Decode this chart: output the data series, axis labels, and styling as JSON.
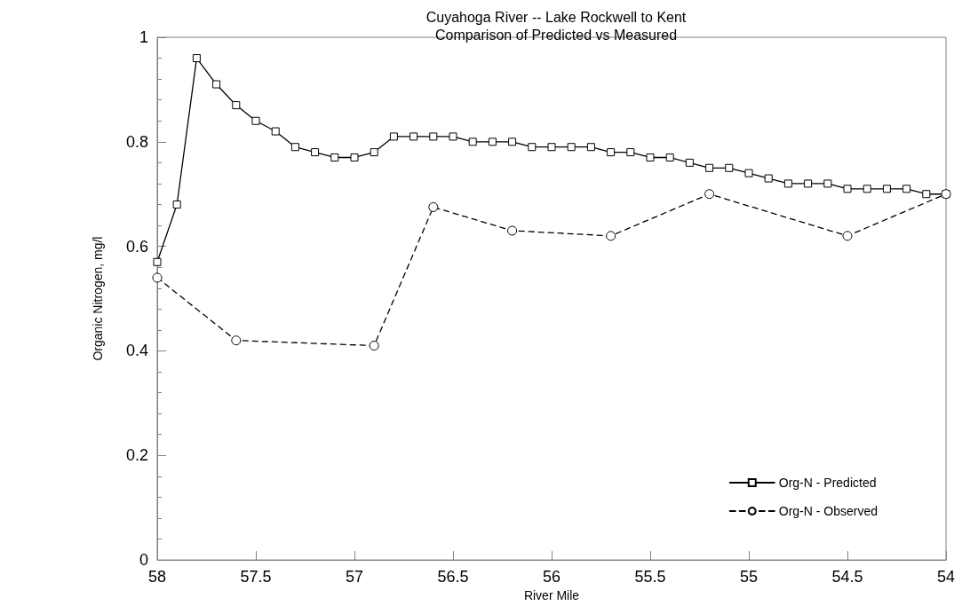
{
  "chart_data": {
    "type": "line",
    "title": "Cuyahoga River -- Lake Rockwell to Kent",
    "subtitle": "Comparison of Predicted vs Measured",
    "xlabel": "River Mile",
    "ylabel": "Organic Nitrogen, mg/l",
    "xlim": [
      58,
      54
    ],
    "xticks": [
      58,
      57.5,
      57,
      56.5,
      56,
      55.5,
      55,
      54.5,
      54
    ],
    "ylim": [
      0,
      1
    ],
    "yticks": [
      0,
      0.2,
      0.4,
      0.6,
      0.8,
      1
    ],
    "grid": false,
    "legend": "bottom right",
    "series": [
      {
        "name": "Org-N - Predicted",
        "color": "#000000",
        "marker": "square",
        "line_style": "solid",
        "x": [
          58,
          57.9,
          57.8,
          57.7,
          57.6,
          57.5,
          57.4,
          57.3,
          57.2,
          57.1,
          57.0,
          56.9,
          56.8,
          56.7,
          56.6,
          56.5,
          56.4,
          56.3,
          56.2,
          56.1,
          56.0,
          55.9,
          55.8,
          55.7,
          55.6,
          55.5,
          55.4,
          55.3,
          55.2,
          55.1,
          55.0,
          54.9,
          54.8,
          54.7,
          54.6,
          54.5,
          54.4,
          54.3,
          54.2,
          54.1,
          54.0
        ],
        "values": [
          0.57,
          0.68,
          0.96,
          0.91,
          0.87,
          0.84,
          0.82,
          0.79,
          0.78,
          0.77,
          0.77,
          0.78,
          0.81,
          0.81,
          0.81,
          0.81,
          0.8,
          0.8,
          0.8,
          0.79,
          0.79,
          0.79,
          0.79,
          0.78,
          0.78,
          0.77,
          0.77,
          0.76,
          0.75,
          0.75,
          0.74,
          0.73,
          0.72,
          0.72,
          0.72,
          0.71,
          0.71,
          0.71,
          0.71,
          0.7,
          0.7
        ]
      },
      {
        "name": "Org-N - Observed",
        "color": "#000000",
        "marker": "circle",
        "line_style": "dashed",
        "x": [
          58,
          57.6,
          56.9,
          56.6,
          56.2,
          55.7,
          55.2,
          54.5,
          54.0
        ],
        "values": [
          0.54,
          0.42,
          0.41,
          0.675,
          0.63,
          0.62,
          0.7,
          0.62,
          0.7
        ]
      }
    ]
  }
}
